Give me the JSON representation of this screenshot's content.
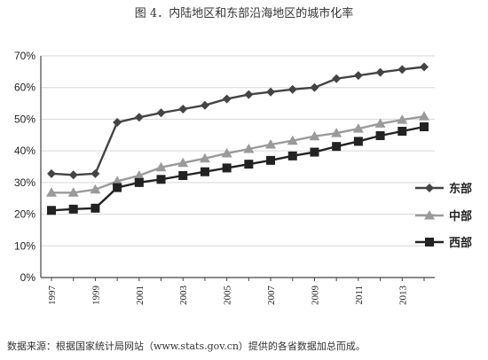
{
  "figure": {
    "title": "图 4．内陆地区和东部沿海地区的城市化率",
    "source": "数据来源：根据国家统计局网站（www.stats.gov.cn）提供的各省数据加总而成。"
  },
  "colors": {
    "east": "#444444",
    "central": "#9a9a9a",
    "west": "#222222",
    "grid": "#d6d6d6",
    "axis": "#444444"
  },
  "chart_data": {
    "type": "line",
    "x": [
      1997,
      1998,
      1999,
      2000,
      2001,
      2002,
      2003,
      2004,
      2005,
      2006,
      2007,
      2008,
      2009,
      2010,
      2011,
      2012,
      2013,
      2014
    ],
    "x_tick_labels": [
      "1997",
      "1999",
      "2001",
      "2003",
      "2005",
      "2007",
      "2009",
      "2011",
      "2013"
    ],
    "y_tick_labels": [
      "0%",
      "10%",
      "20%",
      "30%",
      "40%",
      "50%",
      "60%",
      "70%"
    ],
    "ylim": [
      0,
      70
    ],
    "grid": true,
    "legend_position": "right",
    "series": [
      {
        "name": "东部",
        "marker": "diamond",
        "values": [
          32.8,
          32.4,
          32.8,
          49.0,
          50.6,
          52.0,
          53.2,
          54.4,
          56.4,
          57.8,
          58.6,
          59.4,
          60.0,
          62.8,
          63.8,
          64.8,
          65.7,
          66.5
        ]
      },
      {
        "name": "中部",
        "marker": "triangle",
        "values": [
          26.8,
          26.8,
          27.8,
          30.4,
          32.2,
          34.8,
          36.2,
          37.6,
          39.2,
          40.6,
          42.0,
          43.2,
          44.6,
          45.6,
          47.0,
          48.6,
          49.8,
          50.9
        ]
      },
      {
        "name": "西部",
        "marker": "square",
        "values": [
          21.2,
          21.6,
          21.9,
          28.4,
          30.0,
          31.0,
          32.2,
          33.4,
          34.6,
          35.8,
          37.0,
          38.4,
          39.6,
          41.4,
          43.0,
          44.8,
          46.2,
          47.6
        ]
      }
    ]
  }
}
